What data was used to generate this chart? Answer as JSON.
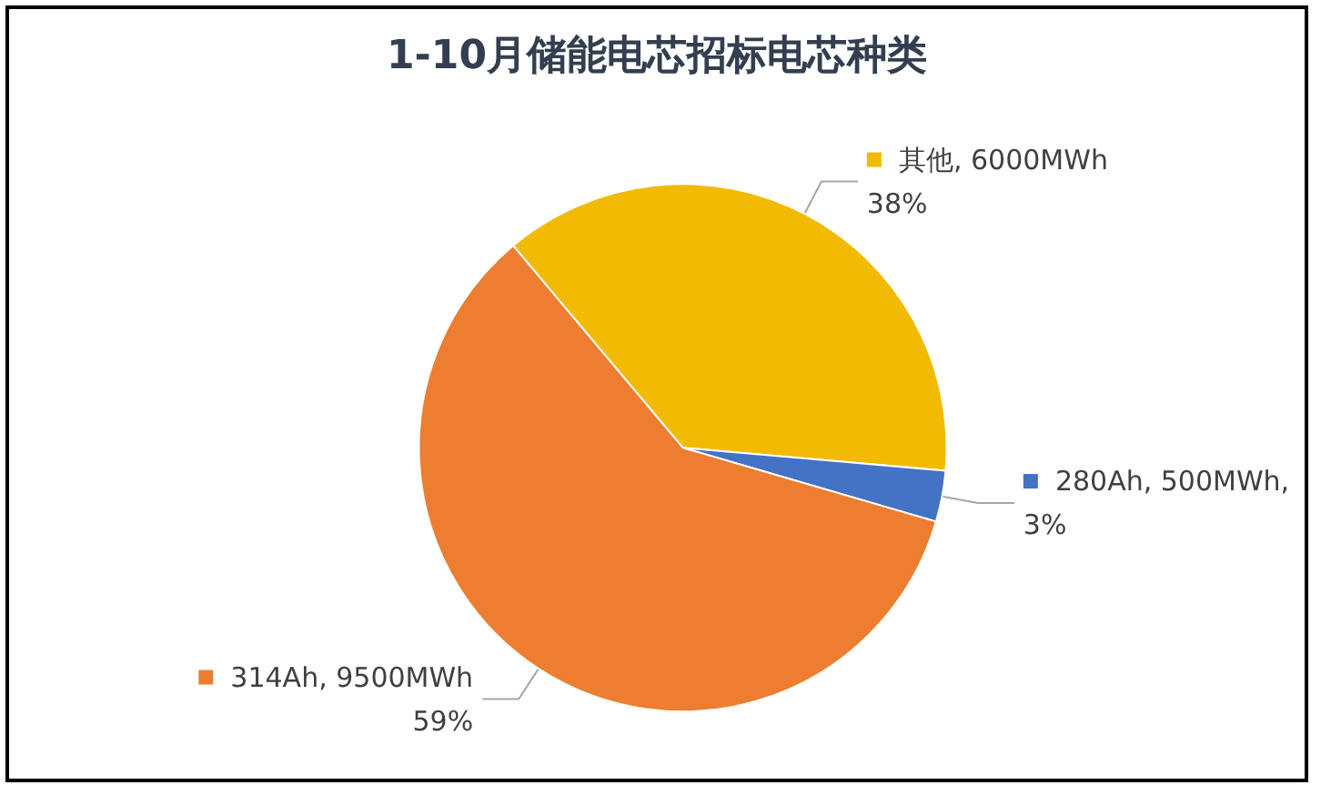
{
  "chart_data": {
    "type": "pie",
    "title": "1-10月储能电芯招标电芯种类",
    "categories": [
      "其他",
      "280Ah",
      "314Ah"
    ],
    "values": [
      6000,
      500,
      9500
    ],
    "value_labels": [
      "6000MWh\n38%",
      "500MWh,\n3%",
      "9500MWh\n59%"
    ],
    "colors": [
      "#f2ba02",
      "#4472c4",
      "#ed7d31"
    ],
    "legend": "right"
  }
}
